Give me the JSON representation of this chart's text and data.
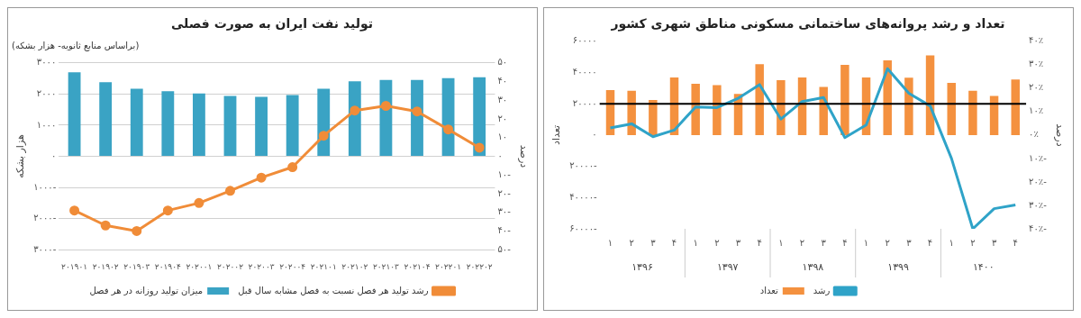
{
  "chart_data": [
    {
      "type": "bar",
      "title": "تولید نفت ایران به صورت فصلی",
      "subtitle": "(براساس منابع ثانویه- هزار بشکه)",
      "ylabel": "هزار بشکه",
      "y2label": "درصد",
      "categories": [
        "۲۰۱۹۰۱",
        "۲۰۱۹۰۲",
        "۲۰۱۹۰۳",
        "۲۰۱۹۰۴",
        "۲۰۲۰۰۱",
        "۲۰۲۰۰۲",
        "۲۰۲۰۰۳",
        "۲۰۲۰۰۴",
        "۲۰۲۱۰۱",
        "۲۰۲۱۰۲",
        "۲۰۲۱۰۳",
        "۲۰۲۱۰۴",
        "۲۰۲۲۰۱",
        "۲۰۲۲۰۲"
      ],
      "series": [
        {
          "name": "میزان تولید روزانه در هر فصل",
          "color": "#3aa3c4",
          "values": [
            2700,
            2380,
            2170,
            2090,
            2020,
            1940,
            1910,
            1970,
            2170,
            2410,
            2450,
            2450,
            2510,
            2540
          ]
        },
        {
          "name": "رشد تولید هر فصل نسبت به فصل مشابه سال قبل",
          "type": "line",
          "axis": "y2",
          "color": "#f08c38",
          "marker": "circle",
          "values": [
            -29,
            -37,
            -40,
            -29,
            -25,
            -18.5,
            -11.4,
            -5.8,
            11,
            24.5,
            27,
            24,
            14.4,
            4.6
          ]
        }
      ],
      "ylim": [
        -3000,
        3000
      ],
      "yticks": [
        {
          "value": -3000,
          "label": "۳۰۰۰-"
        },
        {
          "value": -2000,
          "label": "۲۰۰۰-"
        },
        {
          "value": -1000,
          "label": "۱۰۰۰-"
        },
        {
          "value": 0,
          "label": "۰"
        },
        {
          "value": 1000,
          "label": "۱۰۰۰"
        },
        {
          "value": 2000,
          "label": "۲۰۰۰"
        },
        {
          "value": 3000,
          "label": "۳۰۰۰"
        }
      ],
      "y2lim": [
        -50,
        50
      ],
      "y2ticks": [
        {
          "value": -50,
          "label": "۵۰-"
        },
        {
          "value": -40,
          "label": "۴۰-"
        },
        {
          "value": -30,
          "label": "۳۰-"
        },
        {
          "value": -20,
          "label": "۲۰-"
        },
        {
          "value": -10,
          "label": "۱۰-"
        },
        {
          "value": 0,
          "label": "۰"
        },
        {
          "value": 10,
          "label": "۱۰"
        },
        {
          "value": 20,
          "label": "۲۰"
        },
        {
          "value": 30,
          "label": "۳۰"
        },
        {
          "value": 40,
          "label": "۴۰"
        },
        {
          "value": 50,
          "label": "۵۰"
        }
      ],
      "grid": "y",
      "legend": "bottom"
    },
    {
      "type": "bar",
      "title": "تعداد و رشد پروانه‌های ساختمانی مسکونی مناطق شهری کشور",
      "ylabel": "تعداد",
      "y2label": "درصد",
      "categories": [
        "۱",
        "۲",
        "۳",
        "۴",
        "۱",
        "۲",
        "۳",
        "۴",
        "۱",
        "۲",
        "۳",
        "۴",
        "۱",
        "۲",
        "۳",
        "۴",
        "۱",
        "۲",
        "۳",
        "۴"
      ],
      "annotations": [
        "۱۳۹۶",
        "۱۳۹۷",
        "۱۳۹۸",
        "۱۳۹۹",
        "۱۴۰۰"
      ],
      "series": [
        {
          "name": "تعداد",
          "color": "#f4913f",
          "values": [
            28700,
            28300,
            22400,
            36900,
            32800,
            32000,
            26300,
            45300,
            35100,
            36900,
            30800,
            44900,
            36900,
            47800,
            36700,
            50900,
            33400,
            28300,
            25000,
            35500
          ]
        },
        {
          "name": "رشد",
          "type": "line",
          "axis": "y2",
          "color": "#2fa3c8",
          "marker": "none",
          "values": [
            3,
            4.8,
            -0.7,
            2.1,
            12,
            11.7,
            15.7,
            21.5,
            6.8,
            14.3,
            16,
            -1.1,
            4.3,
            28.3,
            17.8,
            12.4,
            -10,
            -40,
            -31.4,
            -29.8
          ]
        }
      ],
      "ylim": [
        -60000,
        60000
      ],
      "yticks": [
        {
          "value": -60000,
          "label": "۶۰۰۰۰-"
        },
        {
          "value": -40000,
          "label": "۴۰۰۰۰-"
        },
        {
          "value": -20000,
          "label": "۲۰۰۰۰-"
        },
        {
          "value": 0,
          "label": "۰"
        },
        {
          "value": 20000,
          "label": "۲۰۰۰۰"
        },
        {
          "value": 40000,
          "label": "۴۰۰۰۰"
        },
        {
          "value": 60000,
          "label": "۶۰۰۰۰"
        }
      ],
      "y2lim": [
        -40,
        40
      ],
      "y2ticks": [
        {
          "value": -40,
          "label": "۴۰٪-"
        },
        {
          "value": -30,
          "label": "۳۰٪-"
        },
        {
          "value": -20,
          "label": "۲۰٪-"
        },
        {
          "value": -10,
          "label": "۱۰٪-"
        },
        {
          "value": 0,
          "label": "۰٪"
        },
        {
          "value": 10,
          "label": "۱۰٪"
        },
        {
          "value": 20,
          "label": "۲۰٪"
        },
        {
          "value": 30,
          "label": "۳۰٪"
        },
        {
          "value": 40,
          "label": "۴۰٪"
        }
      ],
      "ref_lines": [
        {
          "axis": "y",
          "value": 20000,
          "color": "#000000"
        }
      ],
      "grid": false,
      "legend": "bottom"
    }
  ]
}
